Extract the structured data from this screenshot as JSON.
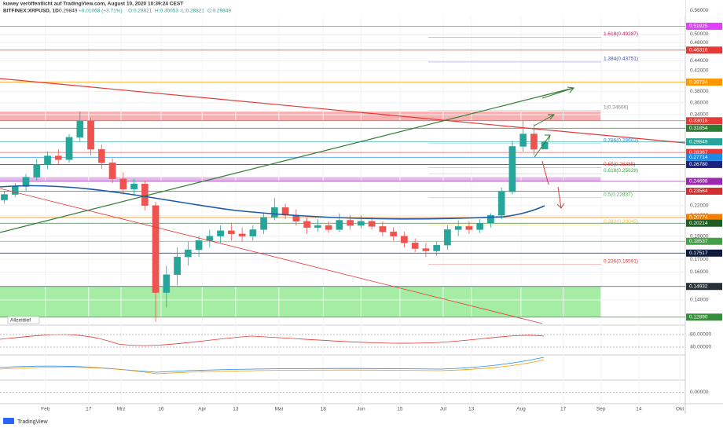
{
  "header": {
    "author_line": "kuwey veröffentlicht auf TradingView.com, August 10, 2020 10:39:24 CEST",
    "symbol": "BITFINEX:XRPUSD, 1D",
    "last": "0.29849",
    "change": "+0.01068 (+3.71%)",
    "open": "O:0.28821",
    "high": "H:0.30053",
    "low": "L:0.28821",
    "close": "C:0.29849"
  },
  "chart_data": {
    "type": "candlestick",
    "log_scale": true,
    "up_color": "#26a69a",
    "down_color": "#ef5350",
    "ylim": [
      0.125,
      0.58
    ],
    "xlim": [
      -0.4,
      63
    ],
    "yticks": [
      {
        "value": 0.56,
        "label": "0.56000"
      },
      {
        "value": 0.5,
        "label": "0.50000"
      },
      {
        "value": 0.48,
        "label": "0.48000"
      },
      {
        "value": 0.44,
        "label": "0.44000"
      },
      {
        "value": 0.42,
        "label": "0.42000"
      },
      {
        "value": 0.38,
        "label": "0.38000"
      },
      {
        "value": 0.36,
        "label": "0.36000"
      },
      {
        "value": 0.34,
        "label": "0.34000"
      },
      {
        "value": 0.22,
        "label": "0.22000"
      },
      {
        "value": 0.21,
        "label": "0.21000"
      },
      {
        "value": 0.19,
        "label": "0.19000"
      },
      {
        "value": 0.17,
        "label": "0.17000"
      },
      {
        "value": 0.16,
        "label": "0.16000"
      },
      {
        "value": 0.14,
        "label": "0.14000"
      }
    ],
    "xticks": [
      {
        "value": 3.8,
        "label": "Feb"
      },
      {
        "value": 7.8,
        "label": "17"
      },
      {
        "value": 10.8,
        "label": "Mrz"
      },
      {
        "value": 14.5,
        "label": "16"
      },
      {
        "value": 18.3,
        "label": "Apr"
      },
      {
        "value": 21.4,
        "label": "13"
      },
      {
        "value": 25.4,
        "label": "Mai"
      },
      {
        "value": 29.5,
        "label": "18"
      },
      {
        "value": 33,
        "label": "Jun"
      },
      {
        "value": 36.6,
        "label": "15"
      },
      {
        "value": 40.6,
        "label": "Jul"
      },
      {
        "value": 43.2,
        "label": "13"
      },
      {
        "value": 47.8,
        "label": "Aug"
      },
      {
        "value": 51.7,
        "label": "17"
      },
      {
        "value": 55.2,
        "label": "Sep"
      },
      {
        "value": 58.7,
        "label": "14"
      },
      {
        "value": 62.5,
        "label": "Okt"
      }
    ],
    "candles": [
      [
        0.226,
        0.236,
        0.222,
        0.232
      ],
      [
        0.232,
        0.245,
        0.229,
        0.241
      ],
      [
        0.241,
        0.256,
        0.236,
        0.252
      ],
      [
        0.252,
        0.275,
        0.248,
        0.268
      ],
      [
        0.268,
        0.285,
        0.262,
        0.279
      ],
      [
        0.279,
        0.288,
        0.268,
        0.274
      ],
      [
        0.274,
        0.31,
        0.27,
        0.305
      ],
      [
        0.305,
        0.345,
        0.298,
        0.33
      ],
      [
        0.33,
        0.335,
        0.28,
        0.288
      ],
      [
        0.288,
        0.295,
        0.262,
        0.27
      ],
      [
        0.27,
        0.276,
        0.245,
        0.25
      ],
      [
        0.25,
        0.258,
        0.232,
        0.238
      ],
      [
        0.238,
        0.25,
        0.232,
        0.244
      ],
      [
        0.244,
        0.248,
        0.215,
        0.22
      ],
      [
        0.22,
        0.224,
        0.126,
        0.145
      ],
      [
        0.145,
        0.165,
        0.135,
        0.158
      ],
      [
        0.158,
        0.18,
        0.15,
        0.172
      ],
      [
        0.172,
        0.185,
        0.165,
        0.178
      ],
      [
        0.178,
        0.19,
        0.172,
        0.186
      ],
      [
        0.186,
        0.196,
        0.18,
        0.19
      ],
      [
        0.19,
        0.2,
        0.184,
        0.195
      ],
      [
        0.195,
        0.202,
        0.186,
        0.192
      ],
      [
        0.192,
        0.198,
        0.185,
        0.19
      ],
      [
        0.19,
        0.2,
        0.186,
        0.196
      ],
      [
        0.196,
        0.212,
        0.192,
        0.208
      ],
      [
        0.208,
        0.228,
        0.205,
        0.218
      ],
      [
        0.218,
        0.222,
        0.206,
        0.21
      ],
      [
        0.21,
        0.216,
        0.2,
        0.204
      ],
      [
        0.204,
        0.208,
        0.192,
        0.198
      ],
      [
        0.198,
        0.206,
        0.194,
        0.2
      ],
      [
        0.2,
        0.204,
        0.193,
        0.196
      ],
      [
        0.196,
        0.212,
        0.194,
        0.205
      ],
      [
        0.205,
        0.21,
        0.196,
        0.2
      ],
      [
        0.2,
        0.21,
        0.197,
        0.204
      ],
      [
        0.204,
        0.208,
        0.196,
        0.199
      ],
      [
        0.199,
        0.204,
        0.19,
        0.194
      ],
      [
        0.194,
        0.198,
        0.186,
        0.19
      ],
      [
        0.19,
        0.194,
        0.18,
        0.184
      ],
      [
        0.184,
        0.188,
        0.176,
        0.179
      ],
      [
        0.179,
        0.184,
        0.172,
        0.177
      ],
      [
        0.177,
        0.185,
        0.173,
        0.182
      ],
      [
        0.182,
        0.2,
        0.178,
        0.196
      ],
      [
        0.196,
        0.205,
        0.19,
        0.199
      ],
      [
        0.199,
        0.204,
        0.192,
        0.196
      ],
      [
        0.196,
        0.206,
        0.193,
        0.202
      ],
      [
        0.202,
        0.212,
        0.198,
        0.21
      ],
      [
        0.21,
        0.24,
        0.206,
        0.235
      ],
      [
        0.235,
        0.3,
        0.232,
        0.292
      ],
      [
        0.292,
        0.33,
        0.285,
        0.31
      ],
      [
        0.31,
        0.325,
        0.28,
        0.288
      ],
      [
        0.28821,
        0.30053,
        0.28821,
        0.29849
      ]
    ],
    "zones": [
      {
        "ylim": [
          0.33018,
          0.345
        ],
        "color": "rgba(239,83,80,0.45)"
      },
      {
        "ylim": [
          0.24698,
          0.252
        ],
        "color": "rgba(186,104,200,0.45)"
      },
      {
        "ylim": [
          0.129,
          0.14932
        ],
        "color": "rgba(76,220,76,0.5)"
      }
    ],
    "markers": [
      {
        "value": 0.51925,
        "color": "#e040fb"
      },
      {
        "value": 0.46316,
        "color": "#e53935"
      },
      {
        "value": 0.39734,
        "color": "#ff9800"
      },
      {
        "value": 0.33018,
        "color": "#e53935"
      },
      {
        "value": 0.31854,
        "color": "#2e7d32"
      },
      {
        "value": 0.29849,
        "color": "#26a69a"
      },
      {
        "value": 0.28367,
        "color": "#e53935"
      },
      {
        "value": 0.27714,
        "color": "#1e88e5"
      },
      {
        "value": 0.2678,
        "label": "0.26780",
        "color": "#1a237e"
      },
      {
        "value": 0.24698,
        "color": "#9c27b0"
      },
      {
        "value": 0.23564,
        "color": "#d32f2f"
      },
      {
        "value": 0.20774,
        "color": "#f57c00"
      },
      {
        "value": 0.20214,
        "color": "#1b5e20"
      },
      {
        "value": 0.18537,
        "color": "#43a047"
      },
      {
        "value": 0.17517,
        "color": "#0d1b3e"
      },
      {
        "value": 0.14932,
        "color": "#263238"
      },
      {
        "value": 0.1289,
        "label": "0.12890",
        "color": "#388e3c"
      }
    ],
    "fib_levels": [
      {
        "value": 0.49287,
        "label": "1.618(0.49287)",
        "color": "#c2185b"
      },
      {
        "value": 0.43751,
        "label": "1.384(0.43751)",
        "color": "#3949ab"
      },
      {
        "value": 0.34666,
        "label": "1(0.34666)",
        "color": "#888888"
      },
      {
        "value": 0.29603,
        "label": "0.786(0.29603)",
        "color": "#1e88e5"
      },
      {
        "value": 0.26385,
        "label": "0.65(0.26385)",
        "color": "#e53935"
      },
      {
        "value": 0.25628,
        "label": "0.618(0.25628)",
        "color": "#43a047"
      },
      {
        "value": 0.22837,
        "label": "0.5(0.22837)",
        "color": "#4caf50"
      },
      {
        "value": 0.20045,
        "label": "0.382(0.20045)",
        "color": "#fbc02d"
      },
      {
        "value": 0.16591,
        "label": "0.236(0.16591)",
        "color": "#e53935"
      }
    ],
    "annotation": "Allzeittief",
    "panels": [
      {
        "ylim": [
          20,
          100
        ],
        "yticks": [
          {
            "value": 80,
            "label": "80.00000"
          },
          {
            "value": 40,
            "label": "40.00000"
          }
        ]
      },
      {
        "ylim": [
          -1,
          1
        ],
        "yticks": [
          {
            "value": 0,
            "label": "0.00000"
          }
        ]
      }
    ]
  },
  "footer": "TradingView"
}
